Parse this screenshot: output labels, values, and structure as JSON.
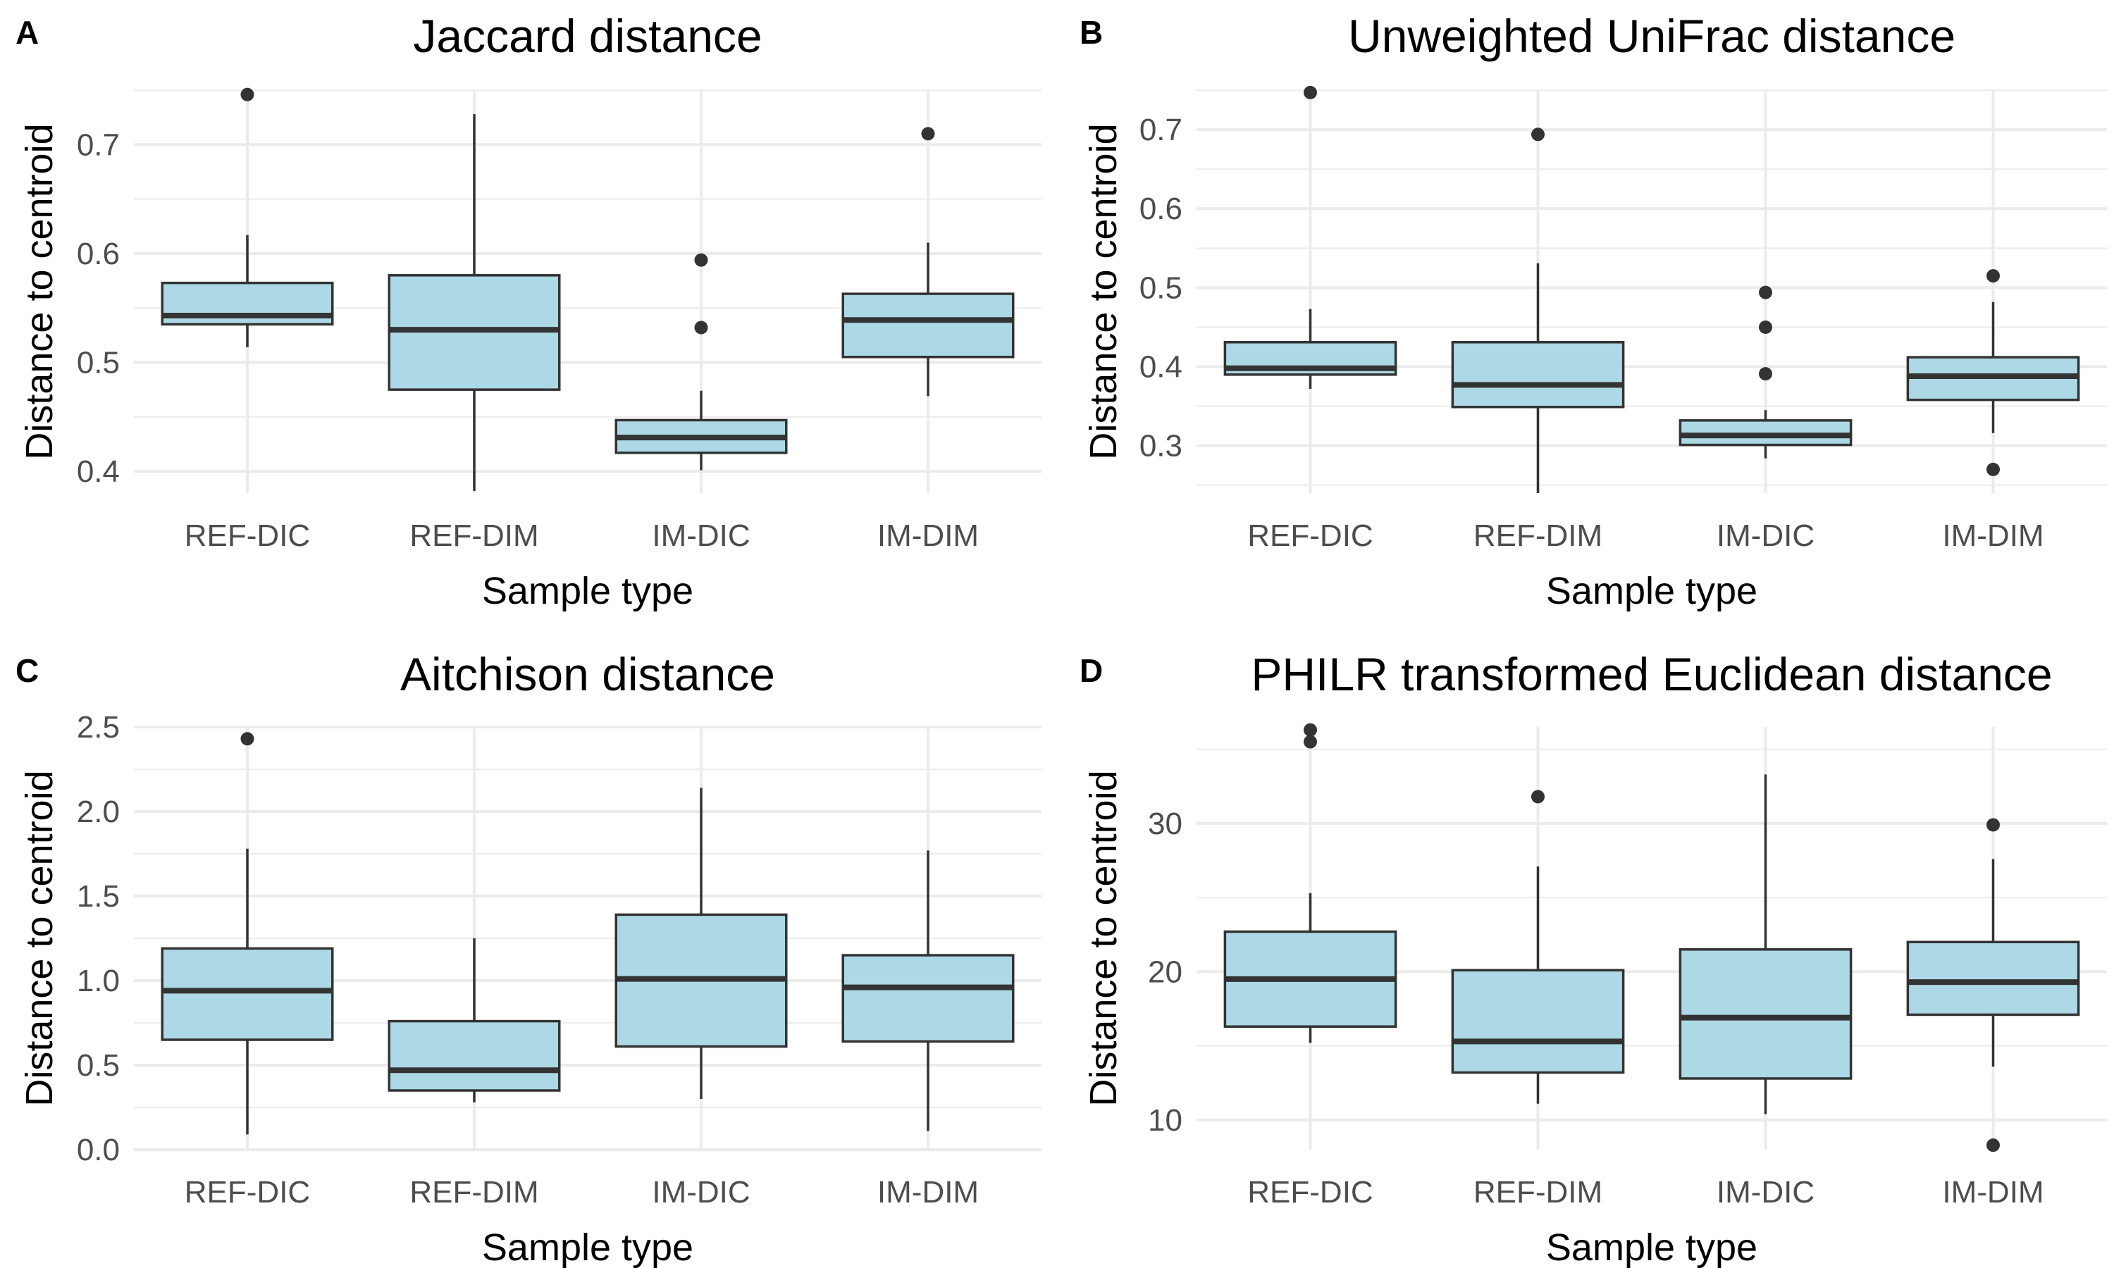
{
  "chart_data": [
    {
      "letter": "A",
      "type": "box",
      "title": "Jaccard distance",
      "xlabel": "Sample type",
      "ylabel": "Distance to centroid",
      "ylim": [
        0.38,
        0.75
      ],
      "yticks": [
        0.4,
        0.5,
        0.6,
        0.7
      ],
      "ytick_labels": [
        "0.4",
        "0.5",
        "0.6",
        "0.7"
      ],
      "categories": [
        "REF-DIC",
        "REF-DIM",
        "IM-DIC",
        "IM-DIM"
      ],
      "boxes": [
        {
          "low": 0.514,
          "q1": 0.535,
          "median": 0.543,
          "q3": 0.573,
          "high": 0.617,
          "outliers": [
            0.746
          ]
        },
        {
          "low": 0.382,
          "q1": 0.475,
          "median": 0.53,
          "q3": 0.58,
          "high": 0.728,
          "outliers": []
        },
        {
          "low": 0.401,
          "q1": 0.417,
          "median": 0.431,
          "q3": 0.447,
          "high": 0.474,
          "outliers": [
            0.594,
            0.532
          ]
        },
        {
          "low": 0.469,
          "q1": 0.505,
          "median": 0.539,
          "q3": 0.563,
          "high": 0.61,
          "outliers": [
            0.71
          ]
        }
      ]
    },
    {
      "letter": "B",
      "type": "box",
      "title": "Unweighted UniFrac distance",
      "xlabel": "Sample type",
      "ylabel": "Distance to centroid",
      "ylim": [
        0.24,
        0.75
      ],
      "yticks": [
        0.3,
        0.4,
        0.5,
        0.6,
        0.7
      ],
      "ytick_labels": [
        "0.3",
        "0.4",
        "0.5",
        "0.6",
        "0.7"
      ],
      "categories": [
        "REF-DIC",
        "REF-DIM",
        "IM-DIC",
        "IM-DIM"
      ],
      "boxes": [
        {
          "low": 0.372,
          "q1": 0.39,
          "median": 0.398,
          "q3": 0.431,
          "high": 0.473,
          "outliers": [
            0.747
          ]
        },
        {
          "low": 0.24,
          "q1": 0.349,
          "median": 0.377,
          "q3": 0.431,
          "high": 0.531,
          "outliers": [
            0.694
          ]
        },
        {
          "low": 0.284,
          "q1": 0.301,
          "median": 0.313,
          "q3": 0.332,
          "high": 0.345,
          "outliers": [
            0.494,
            0.45,
            0.391
          ]
        },
        {
          "low": 0.316,
          "q1": 0.358,
          "median": 0.388,
          "q3": 0.412,
          "high": 0.482,
          "outliers": [
            0.515,
            0.27
          ]
        }
      ]
    },
    {
      "letter": "C",
      "type": "box",
      "title": "Aitchison distance",
      "xlabel": "Sample type",
      "ylabel": "Distance to centroid",
      "ylim": [
        0.0,
        2.5
      ],
      "yticks": [
        0.0,
        0.5,
        1.0,
        1.5,
        2.0,
        2.5
      ],
      "ytick_labels": [
        "0.0",
        "0.5",
        "1.0",
        "1.5",
        "2.0",
        "2.5"
      ],
      "categories": [
        "REF-DIC",
        "REF-DIM",
        "IM-DIC",
        "IM-DIM"
      ],
      "boxes": [
        {
          "low": 0.09,
          "q1": 0.65,
          "median": 0.94,
          "q3": 1.19,
          "high": 1.78,
          "outliers": [
            2.43
          ]
        },
        {
          "low": 0.28,
          "q1": 0.35,
          "median": 0.47,
          "q3": 0.76,
          "high": 1.25,
          "outliers": []
        },
        {
          "low": 0.3,
          "q1": 0.61,
          "median": 1.01,
          "q3": 1.39,
          "high": 2.14,
          "outliers": []
        },
        {
          "low": 0.11,
          "q1": 0.64,
          "median": 0.96,
          "q3": 1.15,
          "high": 1.77,
          "outliers": []
        }
      ]
    },
    {
      "letter": "D",
      "type": "box",
      "title": "PHILR transformed Euclidean distance",
      "xlabel": "Sample type",
      "ylabel": "Distance to centroid",
      "ylim": [
        8.0,
        36.5
      ],
      "yticks": [
        10,
        20,
        30
      ],
      "ytick_labels": [
        "10",
        "20",
        "30"
      ],
      "categories": [
        "REF-DIC",
        "REF-DIM",
        "IM-DIC",
        "IM-DIM"
      ],
      "boxes": [
        {
          "low": 15.2,
          "q1": 16.3,
          "median": 19.5,
          "q3": 22.7,
          "high": 25.3,
          "outliers": [
            36.3,
            35.5
          ]
        },
        {
          "low": 11.1,
          "q1": 13.2,
          "median": 15.3,
          "q3": 20.1,
          "high": 27.1,
          "outliers": [
            31.8
          ]
        },
        {
          "low": 10.4,
          "q1": 12.8,
          "median": 16.9,
          "q3": 21.5,
          "high": 33.3,
          "outliers": []
        },
        {
          "low": 13.6,
          "q1": 17.1,
          "median": 19.3,
          "q3": 22.0,
          "high": 27.6,
          "outliers": [
            29.9,
            8.3
          ]
        }
      ]
    }
  ]
}
